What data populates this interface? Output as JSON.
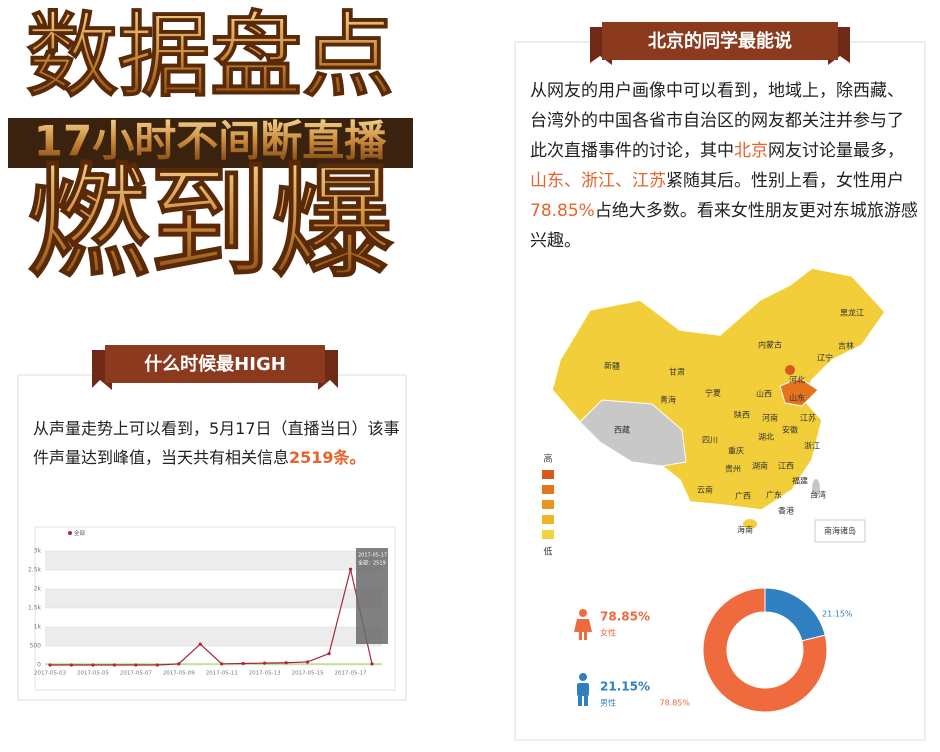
{
  "headline": {
    "line1": "数据盘点",
    "line2": "17小时不间断直播",
    "line3": "燃到爆"
  },
  "emphasis_color": "#e8622c",
  "left_panel": {
    "title": "什么时候最HIGH",
    "paragraph": [
      {
        "text": "从声量走势上可以看到，5月17日（直播当日）该事件声量达到峰值，当天共有相关信息"
      },
      {
        "text": "2519条。",
        "emphasis": true
      }
    ]
  },
  "right_panel": {
    "title": "北京的同学最能说",
    "paragraph": [
      {
        "text": "从网友的用户画像中可以看到，地域上，除西藏、台湾外的中国各省市自治区的网友都关注并参与了此次直播事件的讨论，其中"
      },
      {
        "text": "北京",
        "emphasis": true
      },
      {
        "text": "网友讨论量最多，"
      },
      {
        "text": "山东、浙江、江苏",
        "emphasis": true
      },
      {
        "text": "紧随其后。性别上看，女性用户"
      },
      {
        "text": "78.85%",
        "emphasis": true
      },
      {
        "text": "占绝大多数。看来女性朋友更对东城旅游感兴趣。"
      }
    ]
  },
  "map": {
    "labels": [
      "黑龙江",
      "吉林",
      "辽宁",
      "内蒙古",
      "新疆",
      "西藏",
      "青海",
      "甘肃",
      "宁夏",
      "山西",
      "河北",
      "山东",
      "河南",
      "陕西",
      "四川",
      "重庆",
      "湖北",
      "安徽",
      "江苏",
      "浙江",
      "湖南",
      "江西",
      "福建",
      "贵州",
      "云南",
      "广西",
      "广东",
      "台湾",
      "海南",
      "香港",
      "南海诸岛"
    ],
    "legend_high": "高",
    "legend_low": "低",
    "legend_colors": [
      "#d9561c",
      "#e4741e",
      "#eb9420",
      "#f1b424",
      "#f5d142"
    ]
  },
  "chart_data": [
    {
      "type": "line",
      "categories": [
        "2017-05-03",
        null,
        "2017-05-05",
        null,
        "2017-05-07",
        null,
        "2017-05-09",
        null,
        "2017-05-11",
        null,
        "2017-05-13",
        null,
        "2017-05-15",
        null,
        "2017-05-17",
        null
      ],
      "series": [
        {
          "name": "全部",
          "color": "#a8283a",
          "values": [
            0,
            0,
            0,
            0,
            0,
            0,
            30,
            550,
            30,
            40,
            50,
            60,
            80,
            300,
            2519,
            30
          ]
        }
      ],
      "ylim": [
        0,
        3000
      ],
      "yticks": [
        0,
        500,
        {
          "value": 1000,
          "label": "1k"
        },
        {
          "value": 1500,
          "label": "1.5k"
        },
        {
          "value": 2000,
          "label": "2k"
        },
        {
          "value": 2500,
          "label": "2.5k"
        },
        {
          "value": 3000,
          "label": "3k"
        }
      ],
      "grid": true,
      "tooltip": {
        "title": "2017-05-17",
        "lines": [
          "全部：2519"
        ]
      }
    },
    {
      "type": "donut",
      "categories": [
        "女性",
        "男性"
      ],
      "values": [
        78.85,
        21.15
      ],
      "value_labels": [
        "78.85%",
        "21.15%"
      ],
      "colors": [
        "#ef6a3c",
        "#2f7fc1"
      ]
    }
  ]
}
